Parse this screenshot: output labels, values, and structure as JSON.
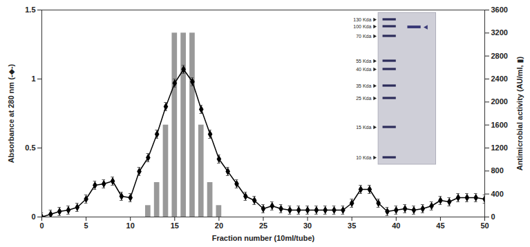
{
  "chart_data": {
    "type": "combo",
    "x": [
      0,
      1,
      2,
      3,
      4,
      5,
      6,
      7,
      8,
      9,
      10,
      11,
      12,
      13,
      14,
      15,
      16,
      17,
      18,
      19,
      20,
      21,
      22,
      23,
      24,
      25,
      26,
      27,
      28,
      29,
      30,
      31,
      32,
      33,
      34,
      35,
      36,
      37,
      38,
      39,
      40,
      41,
      42,
      43,
      44,
      45,
      46,
      47,
      48,
      49,
      50
    ],
    "xlim": [
      0,
      50
    ],
    "xticks": [
      0,
      5,
      10,
      15,
      20,
      25,
      30,
      35,
      40,
      45,
      50
    ],
    "xlabel": "Fraction number (10ml/tube)",
    "ylim": [
      0,
      1.5
    ],
    "yticks": [
      0,
      0.5,
      1,
      1.5
    ],
    "ylabel": "Absorbance at 280 nm (-◆-)",
    "y2lim": [
      0,
      3600
    ],
    "y2ticks": [
      0,
      400,
      800,
      1200,
      1600,
      2000,
      2400,
      2800,
      3200,
      3600
    ],
    "y2label": "Antimicrobial activity (AU/ml, ▮)",
    "series": [
      {
        "type": "line",
        "marker": "diamond",
        "color": "#000000",
        "values": [
          0.0,
          0.02,
          0.04,
          0.05,
          0.07,
          0.13,
          0.23,
          0.24,
          0.26,
          0.15,
          0.14,
          0.33,
          0.43,
          0.6,
          0.8,
          0.97,
          1.07,
          0.98,
          0.78,
          0.6,
          0.42,
          0.33,
          0.24,
          0.15,
          0.12,
          0.06,
          0.08,
          0.06,
          0.05,
          0.05,
          0.05,
          0.05,
          0.05,
          0.05,
          0.05,
          0.1,
          0.2,
          0.2,
          0.1,
          0.04,
          0.05,
          0.06,
          0.05,
          0.06,
          0.08,
          0.12,
          0.11,
          0.14,
          0.14,
          0.14,
          0.13
        ],
        "errors": [
          0.03,
          0.03,
          0.03,
          0.03,
          0.03,
          0.03,
          0.03,
          0.03,
          0.03,
          0.03,
          0.03,
          0.03,
          0.03,
          0.03,
          0.03,
          0.03,
          0.03,
          0.03,
          0.03,
          0.03,
          0.03,
          0.03,
          0.03,
          0.03,
          0.03,
          0.03,
          0.03,
          0.03,
          0.03,
          0.03,
          0.03,
          0.03,
          0.03,
          0.03,
          0.03,
          0.03,
          0.03,
          0.03,
          0.03,
          0.03,
          0.03,
          0.03,
          0.03,
          0.03,
          0.03,
          0.03,
          0.03,
          0.03,
          0.03,
          0.03,
          0.03
        ]
      },
      {
        "type": "bar",
        "axis": "y2",
        "color": "#999999",
        "values": [
          null,
          null,
          null,
          null,
          null,
          null,
          null,
          null,
          null,
          null,
          null,
          null,
          200,
          600,
          1600,
          3200,
          3200,
          3200,
          1600,
          600,
          200,
          null,
          null,
          null,
          null,
          null,
          null,
          null,
          null,
          null,
          null,
          null,
          null,
          null,
          null,
          null,
          null,
          null,
          null,
          null,
          null,
          null,
          null,
          null,
          null,
          null,
          null,
          null,
          null,
          null,
          null
        ]
      }
    ],
    "annotations": [
      "130 Kda",
      "100 Kda",
      "70 Kda",
      "55 Kda",
      "40 Kda",
      "35 Kda",
      "25 Kda",
      "15 Kda",
      "10 Kda"
    ]
  }
}
